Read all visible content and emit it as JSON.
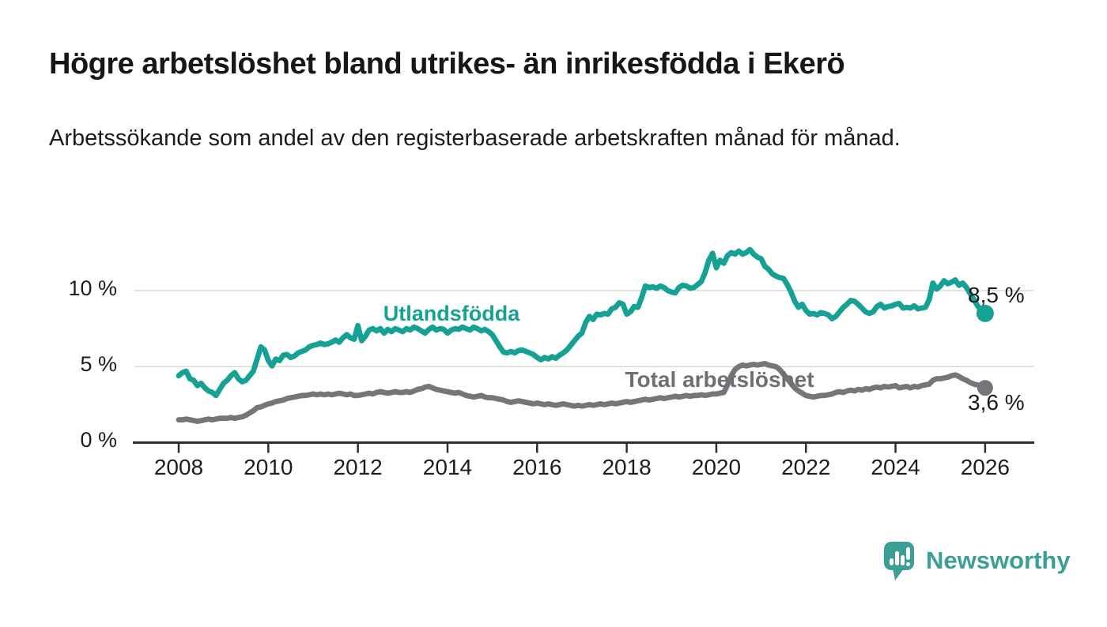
{
  "header": {
    "title": "Högre arbetslöshet bland utrikes- än inrikesfödda i Ekerö",
    "subtitle": "Arbetssökande som andel av den registerbaserade arbetskraften månad för månad."
  },
  "footer": {
    "brand": "Newsworthy",
    "logo_icon": "bar-chart-speech-bubble-icon",
    "brand_color": "#3b9f96"
  },
  "chart_data": {
    "type": "line",
    "title": "",
    "xlabel": "",
    "ylabel": "",
    "x_start": "2008-01",
    "x_end": "2026-01",
    "x_frequency": "monthly",
    "x_tick_labels": [
      "2008",
      "2010",
      "2012",
      "2014",
      "2016",
      "2018",
      "2020",
      "2022",
      "2024",
      "2026"
    ],
    "y_ticks": [
      {
        "value": 0,
        "label": "0 %"
      },
      {
        "value": 5,
        "label": "5 %"
      },
      {
        "value": 10,
        "label": "10 %"
      }
    ],
    "ylim": [
      0,
      13.6
    ],
    "grid": "horizontal",
    "legend_position": "inline-labels",
    "colors": {
      "grid": "#d9d9d9",
      "axis": "#2e2e2e",
      "tick_text": "#1d1d1d"
    },
    "series": [
      {
        "name": "Utlandsfödda",
        "color": "#16a195",
        "end_label": "8,5 %",
        "end_value": 8.5,
        "values": [
          4.4,
          4.6,
          4.7,
          4.2,
          4.1,
          3.75,
          3.9,
          3.6,
          3.4,
          3.3,
          3.1,
          3.5,
          3.9,
          4.1,
          4.4,
          4.6,
          4.2,
          4.0,
          4.1,
          4.4,
          4.7,
          5.5,
          6.3,
          6.1,
          5.4,
          5.05,
          5.5,
          5.4,
          5.75,
          5.8,
          5.6,
          5.7,
          5.9,
          6.0,
          6.1,
          6.3,
          6.4,
          6.45,
          6.55,
          6.45,
          6.5,
          6.6,
          6.75,
          6.6,
          6.9,
          7.1,
          6.9,
          6.8,
          7.7,
          6.7,
          7.0,
          7.4,
          7.5,
          7.35,
          7.5,
          7.2,
          7.45,
          7.3,
          7.5,
          7.4,
          7.3,
          7.5,
          7.4,
          7.6,
          7.5,
          7.35,
          7.2,
          7.45,
          7.6,
          7.4,
          7.5,
          7.45,
          7.2,
          7.4,
          7.5,
          7.45,
          7.6,
          7.5,
          7.4,
          7.6,
          7.5,
          7.35,
          7.45,
          7.3,
          7.1,
          6.7,
          6.3,
          5.95,
          5.9,
          6.0,
          5.9,
          6.05,
          6.1,
          6.0,
          5.9,
          5.8,
          5.6,
          5.45,
          5.6,
          5.5,
          5.65,
          5.55,
          5.75,
          5.9,
          6.1,
          6.4,
          6.7,
          7.0,
          7.2,
          7.9,
          8.3,
          8.1,
          8.45,
          8.4,
          8.5,
          8.45,
          8.8,
          8.9,
          9.2,
          9.1,
          8.45,
          8.6,
          8.95,
          8.9,
          9.55,
          10.3,
          10.2,
          10.25,
          10.15,
          10.3,
          10.2,
          10.0,
          9.9,
          9.85,
          10.2,
          10.35,
          10.3,
          10.15,
          10.2,
          10.4,
          10.6,
          11.2,
          12.0,
          12.45,
          11.5,
          12.0,
          11.8,
          12.3,
          12.5,
          12.4,
          12.6,
          12.4,
          12.5,
          12.7,
          12.4,
          12.2,
          12.1,
          11.6,
          11.4,
          11.1,
          10.95,
          10.85,
          10.8,
          10.4,
          9.9,
          9.3,
          8.9,
          9.1,
          8.7,
          8.45,
          8.5,
          8.4,
          8.55,
          8.5,
          8.4,
          8.15,
          8.3,
          8.6,
          8.9,
          9.1,
          9.35,
          9.3,
          9.1,
          8.85,
          8.6,
          8.5,
          8.6,
          8.95,
          9.1,
          8.85,
          8.95,
          9.0,
          9.1,
          9.15,
          8.85,
          8.9,
          8.85,
          9.0,
          8.8,
          8.85,
          8.9,
          9.4,
          10.5,
          10.1,
          10.3,
          10.65,
          10.45,
          10.55,
          10.7,
          10.35,
          10.5,
          10.2,
          9.8,
          9.4,
          9.0,
          8.7,
          8.5
        ]
      },
      {
        "name": "Total arbetslöshet",
        "color": "#767579",
        "end_label": "3,6 %",
        "end_value": 3.6,
        "values": [
          1.5,
          1.5,
          1.55,
          1.5,
          1.45,
          1.4,
          1.45,
          1.5,
          1.55,
          1.5,
          1.55,
          1.6,
          1.6,
          1.6,
          1.65,
          1.6,
          1.65,
          1.7,
          1.8,
          1.95,
          2.1,
          2.3,
          2.35,
          2.45,
          2.55,
          2.6,
          2.7,
          2.75,
          2.8,
          2.9,
          2.95,
          3.0,
          3.05,
          3.1,
          3.1,
          3.15,
          3.2,
          3.15,
          3.2,
          3.15,
          3.2,
          3.15,
          3.2,
          3.25,
          3.2,
          3.15,
          3.2,
          3.1,
          3.1,
          3.15,
          3.2,
          3.25,
          3.2,
          3.3,
          3.35,
          3.3,
          3.25,
          3.3,
          3.35,
          3.3,
          3.3,
          3.35,
          3.3,
          3.4,
          3.5,
          3.55,
          3.65,
          3.7,
          3.6,
          3.5,
          3.45,
          3.4,
          3.35,
          3.3,
          3.25,
          3.3,
          3.2,
          3.1,
          3.05,
          3.0,
          3.05,
          3.1,
          3.0,
          2.95,
          2.95,
          2.9,
          2.85,
          2.8,
          2.7,
          2.65,
          2.7,
          2.75,
          2.7,
          2.65,
          2.6,
          2.55,
          2.6,
          2.55,
          2.5,
          2.55,
          2.5,
          2.45,
          2.5,
          2.55,
          2.5,
          2.45,
          2.4,
          2.45,
          2.4,
          2.45,
          2.5,
          2.45,
          2.5,
          2.55,
          2.5,
          2.55,
          2.6,
          2.55,
          2.6,
          2.65,
          2.7,
          2.65,
          2.7,
          2.75,
          2.8,
          2.85,
          2.8,
          2.85,
          2.9,
          2.95,
          2.9,
          2.95,
          3.0,
          3.05,
          3.0,
          3.05,
          3.1,
          3.05,
          3.1,
          3.1,
          3.15,
          3.1,
          3.15,
          3.2,
          3.2,
          3.25,
          3.3,
          3.8,
          4.4,
          4.8,
          5.0,
          5.1,
          5.05,
          5.1,
          5.15,
          5.1,
          5.15,
          5.2,
          5.1,
          5.05,
          5.0,
          4.8,
          4.5,
          4.2,
          3.9,
          3.6,
          3.4,
          3.25,
          3.1,
          3.05,
          3.0,
          3.05,
          3.1,
          3.1,
          3.15,
          3.2,
          3.3,
          3.35,
          3.3,
          3.4,
          3.45,
          3.4,
          3.5,
          3.45,
          3.55,
          3.5,
          3.6,
          3.65,
          3.6,
          3.7,
          3.65,
          3.7,
          3.75,
          3.6,
          3.65,
          3.7,
          3.6,
          3.7,
          3.65,
          3.75,
          3.8,
          3.85,
          4.1,
          4.2,
          4.2,
          4.25,
          4.3,
          4.4,
          4.45,
          4.35,
          4.2,
          4.1,
          3.95,
          3.85,
          3.8,
          3.7,
          3.6
        ]
      }
    ]
  }
}
